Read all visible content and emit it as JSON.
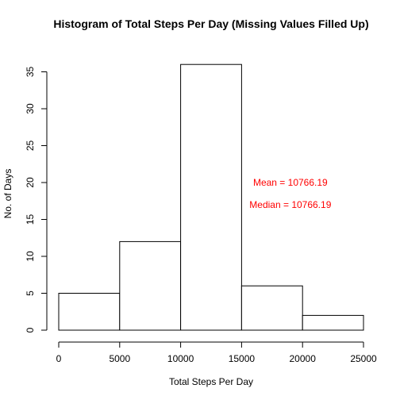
{
  "chart_data": {
    "type": "bar",
    "title": "Histogram of Total Steps Per Day (Missing Values Filled Up)",
    "xlabel": "Total Steps Per Day",
    "ylabel": "No. of Days",
    "bins": [
      {
        "start": 0,
        "end": 5000,
        "count": 5
      },
      {
        "start": 5000,
        "end": 10000,
        "count": 12
      },
      {
        "start": 10000,
        "end": 15000,
        "count": 36
      },
      {
        "start": 15000,
        "end": 20000,
        "count": 6
      },
      {
        "start": 20000,
        "end": 25000,
        "count": 2
      }
    ],
    "xlim": [
      0,
      25000
    ],
    "ylim": [
      0,
      36
    ],
    "x_ticks": [
      0,
      5000,
      10000,
      15000,
      20000,
      25000
    ],
    "y_ticks": [
      0,
      5,
      10,
      15,
      20,
      25,
      30,
      35
    ],
    "bar_fill": "#ffffff",
    "bar_stroke": "#000000",
    "annotations": [
      {
        "text": "Mean =  10766.19",
        "color": "#ff0000",
        "x": 19000,
        "y": 20
      },
      {
        "text": "Median =  10766.19",
        "color": "#ff0000",
        "x": 19000,
        "y": 17
      }
    ],
    "grid": false,
    "legend": "none"
  }
}
